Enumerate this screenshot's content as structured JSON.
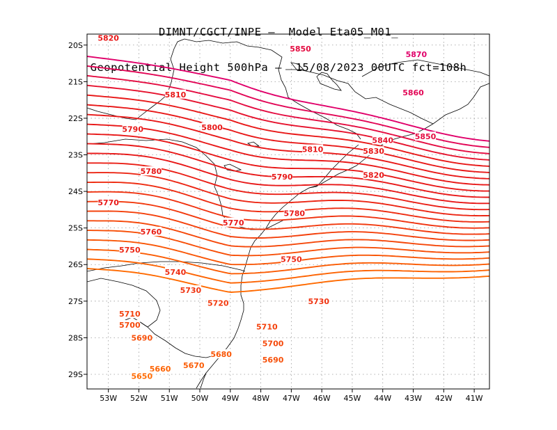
{
  "title": {
    "line1": "DIMNT/CGCT/INPE –  Model Eta05_M01_",
    "line2": "Geopotential Height 500hPa –  15/08/2023 00UTC fct=108h"
  },
  "axes": {
    "lon_ticks": [
      "53W",
      "52W",
      "51W",
      "50W",
      "49W",
      "48W",
      "47W",
      "46W",
      "45W",
      "44W",
      "43W",
      "42W",
      "41W"
    ],
    "lat_ticks": [
      "20S",
      "21S",
      "22S",
      "23S",
      "24S",
      "25S",
      "26S",
      "27S",
      "28S",
      "29S"
    ],
    "lon_range": [
      -53.7,
      -40.5
    ],
    "lat_range": [
      -29.4,
      -19.7
    ]
  },
  "chart_data": {
    "type": "contour",
    "variable": "Geopotential Height 500hPa",
    "contour_interval": 10,
    "levels": [
      5650,
      5660,
      5670,
      5680,
      5690,
      5700,
      5710,
      5720,
      5730,
      5740,
      5750,
      5760,
      5770,
      5780,
      5790,
      5800,
      5810,
      5820,
      5830,
      5840,
      5850,
      5860,
      5870
    ],
    "contour_labels": [
      {
        "value": "5870",
        "lon": -42.9,
        "lat": -20.25
      },
      {
        "value": "5860",
        "lon": -43.0,
        "lat": -21.3
      },
      {
        "value": "5850",
        "lon": -46.7,
        "lat": -20.1
      },
      {
        "value": "5850",
        "lon": -42.6,
        "lat": -22.5
      },
      {
        "value": "5840",
        "lon": -44.0,
        "lat": -22.6
      },
      {
        "value": "5830",
        "lon": -44.3,
        "lat": -22.9
      },
      {
        "value": "5820",
        "lon": -53.0,
        "lat": -19.8
      },
      {
        "value": "5820",
        "lon": -44.3,
        "lat": -23.55
      },
      {
        "value": "5810",
        "lon": -50.8,
        "lat": -21.35
      },
      {
        "value": "5810",
        "lon": -46.3,
        "lat": -22.85
      },
      {
        "value": "5800",
        "lon": -49.6,
        "lat": -22.25
      },
      {
        "value": "5790",
        "lon": -52.2,
        "lat": -22.3
      },
      {
        "value": "5790",
        "lon": -47.3,
        "lat": -23.6
      },
      {
        "value": "5780",
        "lon": -51.6,
        "lat": -23.45
      },
      {
        "value": "5780",
        "lon": -46.9,
        "lat": -24.6
      },
      {
        "value": "5770",
        "lon": -53.0,
        "lat": -24.3
      },
      {
        "value": "5770",
        "lon": -48.9,
        "lat": -24.85
      },
      {
        "value": "5760",
        "lon": -51.6,
        "lat": -25.1
      },
      {
        "value": "5750",
        "lon": -52.3,
        "lat": -25.6
      },
      {
        "value": "5750",
        "lon": -47.0,
        "lat": -25.85
      },
      {
        "value": "5740",
        "lon": -50.8,
        "lat": -26.2
      },
      {
        "value": "5730",
        "lon": -50.3,
        "lat": -26.7
      },
      {
        "value": "5730",
        "lon": -46.1,
        "lat": -27.0
      },
      {
        "value": "5720",
        "lon": -49.4,
        "lat": -27.05
      },
      {
        "value": "5710",
        "lon": -52.3,
        "lat": -27.35
      },
      {
        "value": "5710",
        "lon": -47.8,
        "lat": -27.7
      },
      {
        "value": "5700",
        "lon": -52.3,
        "lat": -27.65
      },
      {
        "value": "5700",
        "lon": -47.6,
        "lat": -28.15
      },
      {
        "value": "5690",
        "lon": -51.9,
        "lat": -28.0
      },
      {
        "value": "5690",
        "lon": -47.6,
        "lat": -28.6
      },
      {
        "value": "5680",
        "lon": -49.3,
        "lat": -28.45
      },
      {
        "value": "5670",
        "lon": -50.2,
        "lat": -28.75
      },
      {
        "value": "5660",
        "lon": -51.3,
        "lat": -28.85
      },
      {
        "value": "5650",
        "lon": -51.9,
        "lat": -29.05
      }
    ]
  },
  "colors": {
    "high": "#e0006a",
    "mid": "#e81818",
    "low": "#ff6a00",
    "coast": "#000000",
    "grid": "#999999"
  }
}
